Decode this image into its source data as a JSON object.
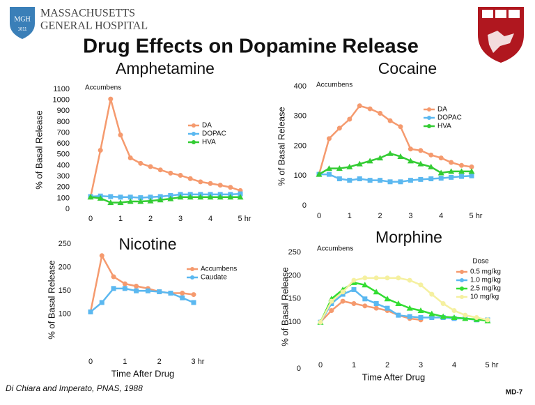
{
  "slide": {
    "org_line1": "MASSACHUSETTS",
    "org_line2": "GENERAL HOSPITAL",
    "logo_text": "MGH",
    "logo_year": "1811",
    "title": "Drug Effects on Dopamine Release",
    "citation": "Di Chiara and Imperato, PNAS, 1988",
    "slide_id": "MD-7"
  },
  "chart_data": [
    {
      "type": "line",
      "title": "Amphetamine",
      "annotation": "Accumbens",
      "y_label": "% of Basal Release",
      "x": [
        0,
        0.33,
        0.67,
        1,
        1.33,
        1.67,
        2,
        2.33,
        2.67,
        3,
        3.33,
        3.67,
        4,
        4.33,
        4.67,
        5
      ],
      "xlim": [
        0,
        5
      ],
      "xticks": [
        0,
        1,
        2,
        3,
        4,
        {
          "value": 5,
          "label": "5 hr"
        }
      ],
      "ylim": [
        0,
        1100
      ],
      "yticks": [
        0,
        100,
        200,
        300,
        400,
        500,
        600,
        700,
        800,
        900,
        1000,
        1100
      ],
      "series": [
        {
          "name": "DA",
          "color": "#f59a6e",
          "marker": "circle",
          "values": [
            110,
            540,
            1010,
            680,
            470,
            420,
            390,
            360,
            330,
            310,
            280,
            250,
            235,
            220,
            200,
            170
          ]
        },
        {
          "name": "DOPAC",
          "color": "#5bb8f0",
          "marker": "square",
          "values": [
            115,
            120,
            115,
            110,
            110,
            105,
            110,
            115,
            125,
            135,
            135,
            135,
            135,
            135,
            135,
            140
          ]
        },
        {
          "name": "HVA",
          "color": "#33cc33",
          "marker": "triangle",
          "values": [
            110,
            100,
            60,
            60,
            70,
            70,
            75,
            85,
            95,
            110,
            110,
            110,
            110,
            110,
            110,
            110
          ]
        }
      ]
    },
    {
      "type": "line",
      "title": "Cocaine",
      "annotation": "Accumbens",
      "y_label": "% of Basal Release",
      "x": [
        0,
        0.33,
        0.67,
        1,
        1.33,
        1.67,
        2,
        2.33,
        2.67,
        3,
        3.33,
        3.67,
        4,
        4.33,
        4.67,
        5
      ],
      "xlim": [
        0,
        5
      ],
      "xticks": [
        0,
        1,
        2,
        3,
        4,
        {
          "value": 5,
          "label": "5 hr"
        }
      ],
      "ylim": [
        0,
        400
      ],
      "yticks": [
        0,
        100,
        200,
        300,
        400
      ],
      "series": [
        {
          "name": "DA",
          "color": "#f59a6e",
          "marker": "circle",
          "values": [
            105,
            225,
            260,
            290,
            335,
            325,
            310,
            285,
            265,
            190,
            185,
            170,
            160,
            145,
            135,
            130
          ]
        },
        {
          "name": "DOPAC",
          "color": "#5bb8f0",
          "marker": "square",
          "values": [
            105,
            105,
            90,
            85,
            90,
            85,
            85,
            80,
            80,
            85,
            88,
            90,
            92,
            95,
            98,
            100
          ]
        },
        {
          "name": "HVA",
          "color": "#33cc33",
          "marker": "triangle",
          "values": [
            105,
            125,
            125,
            130,
            140,
            150,
            160,
            175,
            165,
            150,
            140,
            130,
            110,
            115,
            115,
            115
          ]
        }
      ]
    },
    {
      "type": "line",
      "title": "Nicotine",
      "y_label": "% of Basal Release",
      "x_label": "Time After Drug",
      "x": [
        0,
        0.33,
        0.67,
        1,
        1.33,
        1.67,
        2,
        2.33,
        2.67,
        3
      ],
      "xlim": [
        0,
        3
      ],
      "xticks": [
        0,
        1,
        2,
        {
          "value": 3,
          "label": "3 hr"
        }
      ],
      "ylim": [
        0,
        250
      ],
      "yticks": [
        100,
        150,
        200,
        250
      ],
      "series": [
        {
          "name": "Accumbens",
          "color": "#f59a6e",
          "marker": "circle",
          "values": [
            105,
            225,
            180,
            165,
            160,
            155,
            148,
            145,
            145,
            142
          ]
        },
        {
          "name": "Caudate",
          "color": "#5bb8f0",
          "marker": "square",
          "values": [
            105,
            125,
            155,
            155,
            150,
            150,
            148,
            145,
            135,
            125
          ]
        }
      ]
    },
    {
      "type": "line",
      "title": "Morphine",
      "annotation": "Accumbens",
      "legend_title": "Dose",
      "y_label": "% of Basal Release",
      "x_label": "Time After Drug",
      "x": [
        0,
        0.33,
        0.67,
        1,
        1.33,
        1.67,
        2,
        2.33,
        2.67,
        3,
        3.33,
        3.67,
        4,
        4.33,
        4.67,
        5
      ],
      "xlim": [
        0,
        5
      ],
      "xticks": [
        0,
        1,
        2,
        3,
        4,
        {
          "value": 5,
          "label": "5 hr"
        }
      ],
      "ylim": [
        0,
        250
      ],
      "yticks": [
        0,
        100,
        150,
        200,
        250
      ],
      "series": [
        {
          "name": "0.5 mg/kg",
          "color": "#f59a6e",
          "marker": "circle",
          "values": [
            100,
            125,
            145,
            140,
            135,
            130,
            125,
            115,
            108,
            105,
            null,
            null,
            null,
            null,
            null,
            null
          ]
        },
        {
          "name": "1.0 mg/kg",
          "color": "#5bb8f0",
          "marker": "square",
          "values": [
            100,
            140,
            160,
            170,
            150,
            140,
            130,
            115,
            112,
            110,
            110,
            110,
            108,
            108,
            105,
            105
          ]
        },
        {
          "name": "2.5 mg/kg",
          "color": "#33dd33",
          "marker": "triangle",
          "values": [
            100,
            150,
            170,
            185,
            180,
            165,
            150,
            140,
            130,
            125,
            118,
            112,
            110,
            108,
            106,
            103
          ]
        },
        {
          "name": "10 mg/kg",
          "color": "#f5f0a0",
          "marker": "circle",
          "values": [
            100,
            145,
            165,
            190,
            195,
            195,
            195,
            195,
            190,
            180,
            160,
            140,
            125,
            115,
            110,
            105
          ]
        }
      ]
    }
  ]
}
